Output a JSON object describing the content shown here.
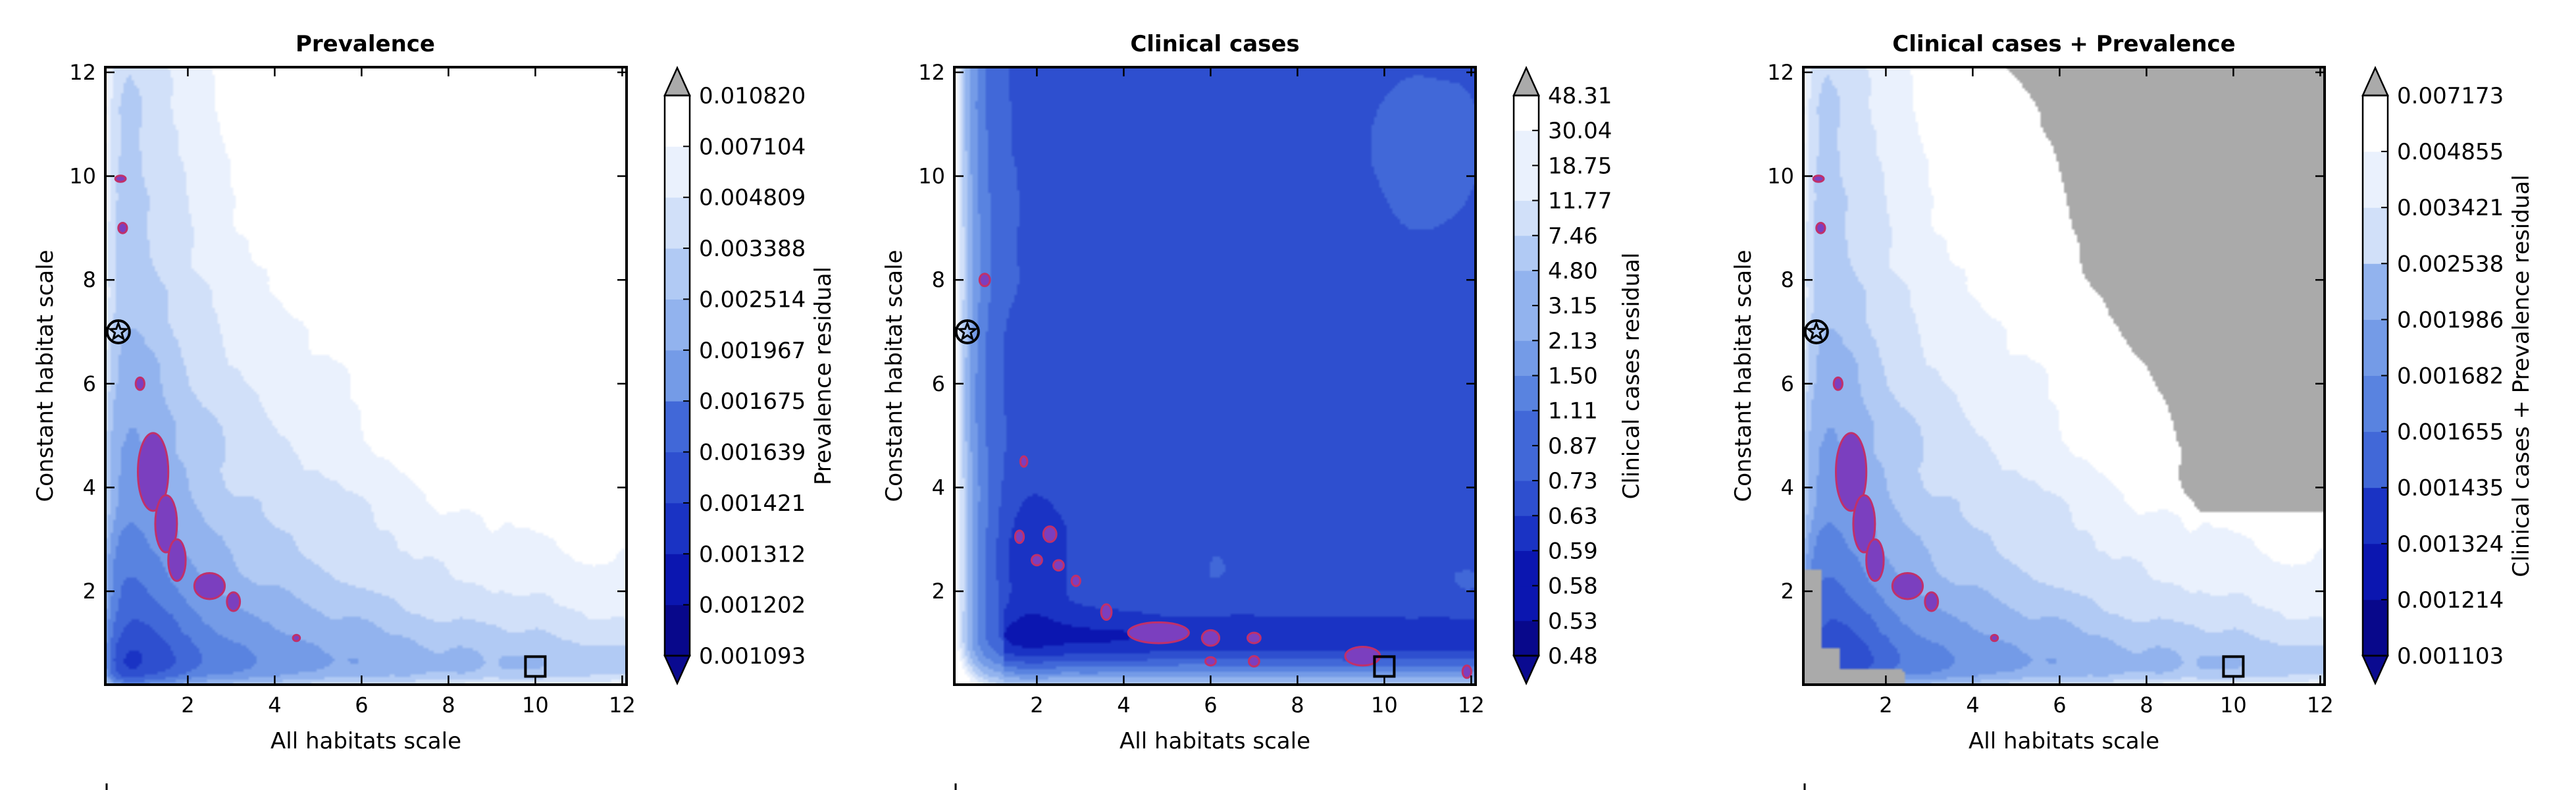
{
  "colors": {
    "levels": [
      "#08088b",
      "#0b16b0",
      "#1a33c4",
      "#2e4fcf",
      "#4168d8",
      "#5983e0",
      "#749be7",
      "#92b3ee",
      "#b1caf4",
      "#d1e0f9",
      "#eaf1fd",
      "#ffffff"
    ],
    "under": "#0a0a90",
    "over": "#aaaaaa",
    "highlight": "#7b3fbf",
    "highlight_edge": "#c0306a",
    "masked": "#aaaaaa"
  },
  "chart_data": [
    {
      "type": "contour",
      "title": "Prevalence",
      "xlabel": "All habitats scale",
      "ylabel": "Constant habitat scale",
      "xlim": [
        0.1,
        12.1
      ],
      "ylim": [
        0.2,
        12.1
      ],
      "xticks": [
        2,
        4,
        6,
        8,
        10,
        12
      ],
      "yticks": [
        2,
        4,
        6,
        8,
        10,
        12
      ],
      "field": "prevalence",
      "masked_region": false,
      "colorbar": {
        "label": "Prevalence residual",
        "extend": "both",
        "levels": [
          "0.001093",
          "0.001202",
          "0.001312",
          "0.001421",
          "0.001639",
          "0.001675",
          "0.001967",
          "0.002514",
          "0.003388",
          "0.004809",
          "0.007104",
          "0.010820"
        ]
      },
      "star_marker": {
        "x": 0.4,
        "y": 7.0
      },
      "square_marker": {
        "x": 10.0,
        "y": 0.55
      }
    },
    {
      "type": "contour",
      "title": "Clinical cases",
      "xlabel": "All habitats scale",
      "ylabel": "Constant habitat scale",
      "xlim": [
        0.1,
        12.1
      ],
      "ylim": [
        0.2,
        12.1
      ],
      "xticks": [
        2,
        4,
        6,
        8,
        10,
        12
      ],
      "yticks": [
        2,
        4,
        6,
        8,
        10,
        12
      ],
      "field": "clinical",
      "masked_region": false,
      "colorbar": {
        "label": "Clinical cases residual",
        "extend": "both",
        "levels": [
          "0.48",
          "0.53",
          "0.58",
          "0.59",
          "0.63",
          "0.73",
          "0.87",
          "1.11",
          "1.50",
          "2.13",
          "3.15",
          "4.80",
          "7.46",
          "11.77",
          "18.75",
          "30.04",
          "48.31"
        ]
      },
      "star_marker": {
        "x": 0.4,
        "y": 7.0
      },
      "square_marker": {
        "x": 10.0,
        "y": 0.55
      }
    },
    {
      "type": "contour",
      "title": "Clinical cases + Prevalence",
      "xlabel": "All habitats scale",
      "ylabel": "Constant habitat scale",
      "xlim": [
        0.1,
        12.1
      ],
      "ylim": [
        0.2,
        12.1
      ],
      "xticks": [
        2,
        4,
        6,
        8,
        10,
        12
      ],
      "yticks": [
        2,
        4,
        6,
        8,
        10,
        12
      ],
      "field": "combined",
      "masked_region": true,
      "colorbar": {
        "label": "Clinical cases + Prevalence residual",
        "extend": "both",
        "levels": [
          "0.001103",
          "0.001214",
          "0.001324",
          "0.001435",
          "0.001655",
          "0.001682",
          "0.001986",
          "0.002538",
          "0.003421",
          "0.004855",
          "0.007173"
        ]
      },
      "star_marker": {
        "x": 0.4,
        "y": 7.0
      },
      "square_marker": {
        "x": 10.0,
        "y": 0.55
      }
    }
  ]
}
